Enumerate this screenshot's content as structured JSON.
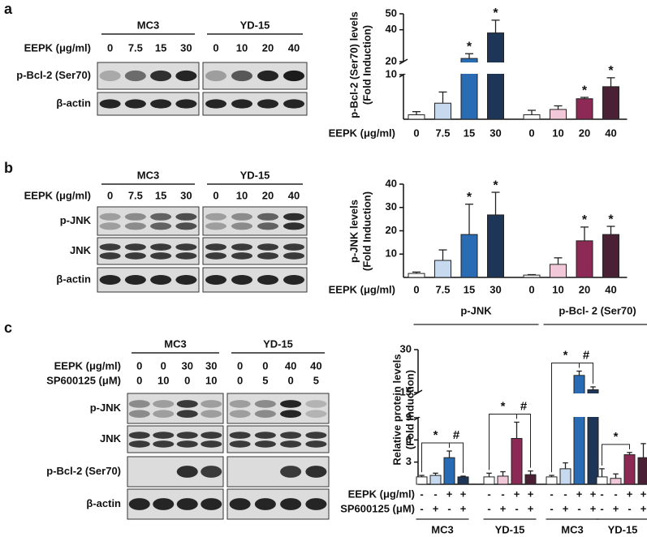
{
  "panel_labels": [
    "a",
    "b",
    "c"
  ],
  "blots": [
    {
      "cell_lines": [
        "MC3",
        "YD-15"
      ],
      "treatments": [
        {
          "label": "EEPK (μg/ml)",
          "doses": [
            "0",
            "7.5",
            "15",
            "30",
            "0",
            "10",
            "20",
            "40"
          ]
        }
      ],
      "rows": [
        "p-Bcl-2 (Ser70)",
        "β-actin"
      ]
    },
    {
      "cell_lines": [
        "MC3",
        "YD-15"
      ],
      "treatments": [
        {
          "label": "EEPK (μg/ml)",
          "doses": [
            "0",
            "7.5",
            "15",
            "30",
            "0",
            "10",
            "20",
            "40"
          ]
        }
      ],
      "rows": [
        "p-JNK",
        "JNK",
        "β-actin"
      ]
    },
    {
      "cell_lines": [
        "MC3",
        "YD-15"
      ],
      "treatments": [
        {
          "label": "EEPK (μg/ml)",
          "doses": [
            "0",
            "0",
            "30",
            "30",
            "0",
            "0",
            "40",
            "40"
          ]
        },
        {
          "label": "SP600125 (μM)",
          "doses": [
            "0",
            "10",
            "0",
            "10",
            "0",
            "5",
            "0",
            "5"
          ]
        }
      ],
      "rows": [
        "p-JNK",
        "JNK",
        "p-Bcl-2 (Ser70)",
        "β-actin"
      ]
    }
  ],
  "chart_data": [
    {
      "type": "bar",
      "ylabel": [
        "p-Bcl-2 (Ser70) levels",
        "(Fold Induction)"
      ],
      "xlabel": "EEPK (μg/ml)",
      "categories": [
        "0",
        "7.5",
        "15",
        "30",
        "0",
        "10",
        "20",
        "40"
      ],
      "values": [
        1,
        3.6,
        22,
        38,
        1,
        2.2,
        4.6,
        7.3
      ],
      "errors": [
        0.7,
        2.5,
        3,
        8,
        1,
        0.8,
        0.3,
        2
      ],
      "colors": [
        "#ffffff",
        "#c6d9ee",
        "#2a6cb3",
        "#1d3557",
        "#ffffff",
        "#f0c8d8",
        "#8c2a55",
        "#4a2035"
      ],
      "markers": [
        null,
        null,
        "*",
        "*",
        null,
        null,
        "*",
        "*"
      ],
      "ylim": [
        0,
        50
      ],
      "y_break": [
        10,
        20
      ],
      "yticks": [
        10,
        20,
        40,
        50
      ]
    },
    {
      "type": "bar",
      "ylabel": [
        "p-JNK levels",
        "(Fold Induction)"
      ],
      "xlabel": "EEPK (μg/ml)",
      "categories": [
        "0",
        "7.5",
        "15",
        "30",
        "0",
        "10",
        "20",
        "40"
      ],
      "values": [
        1.7,
        7.3,
        18.4,
        26.8,
        1,
        5.6,
        15.7,
        18.4
      ],
      "errors": [
        0.6,
        4.5,
        13,
        9.7,
        0.2,
        2.8,
        5.9,
        3.5
      ],
      "colors": [
        "#ffffff",
        "#c6d9ee",
        "#2a6cb3",
        "#1d3557",
        "#ffffff",
        "#f0c8d8",
        "#8c2a55",
        "#4a2035"
      ],
      "markers": [
        null,
        null,
        "*",
        "*",
        null,
        null,
        "*",
        "*"
      ],
      "ylim": [
        0,
        40
      ],
      "yticks": [
        10,
        20,
        30,
        40
      ]
    },
    {
      "type": "bar",
      "ylabel": [
        "Relative protein levels",
        "(Fold Induction)"
      ],
      "values": [
        1,
        1.2,
        3.6,
        1,
        1,
        1.1,
        6.2,
        1.3,
        1,
        2.1,
        21,
        16,
        1,
        0.8,
        4,
        3.6
      ],
      "errors": [
        0.2,
        0.3,
        0.9,
        0.1,
        0.5,
        0.6,
        2.2,
        0.5,
        0.2,
        0.8,
        1.5,
        1,
        1.1,
        0.6,
        0.3,
        1.9
      ],
      "colors": [
        "#ffffff",
        "#c6d9ee",
        "#2a6cb3",
        "#1d3557",
        "#ffffff",
        "#f0c8d8",
        "#8c2a55",
        "#4a2035",
        "#ffffff",
        "#c6d9ee",
        "#2a6cb3",
        "#1d3557",
        "#ffffff",
        "#f0c8d8",
        "#8c2a55",
        "#4a2035"
      ],
      "ylim": [
        0,
        30
      ],
      "y_break": [
        9,
        15
      ],
      "yticks": [
        3,
        6,
        9,
        15,
        30
      ],
      "comparisons": [
        {
          "bars": [
            0,
            2
          ],
          "label": "*"
        },
        {
          "bars": [
            2,
            3
          ],
          "label": "#"
        },
        {
          "bars": [
            4,
            6
          ],
          "label": "*"
        },
        {
          "bars": [
            6,
            7
          ],
          "label": "#"
        },
        {
          "bars": [
            8,
            10
          ],
          "label": "*"
        },
        {
          "bars": [
            10,
            11
          ],
          "label": "#"
        },
        {
          "bars": [
            12,
            14
          ],
          "label": "*"
        }
      ],
      "headers": [
        {
          "label": "p-JNK",
          "groups": [
            0,
            1
          ]
        },
        {
          "label": "p-Bcl- 2 (Ser70)",
          "groups": [
            2,
            3
          ]
        }
      ],
      "conditions": [
        {
          "label": "EEPK (μg/ml)",
          "signs": [
            "-",
            "-",
            "+",
            "+",
            "-",
            "-",
            "+",
            "+",
            "-",
            "-",
            "+",
            "+",
            "-",
            "-",
            "+",
            "+"
          ]
        },
        {
          "label": "SP600125 (μM)",
          "signs": [
            "-",
            "+",
            "-",
            "+",
            "-",
            "+",
            "-",
            "+",
            "-",
            "+",
            "-",
            "+",
            "-",
            "+",
            "-",
            "+"
          ]
        }
      ],
      "groups": [
        "MC3",
        "YD-15",
        "MC3",
        "YD-15"
      ]
    }
  ]
}
